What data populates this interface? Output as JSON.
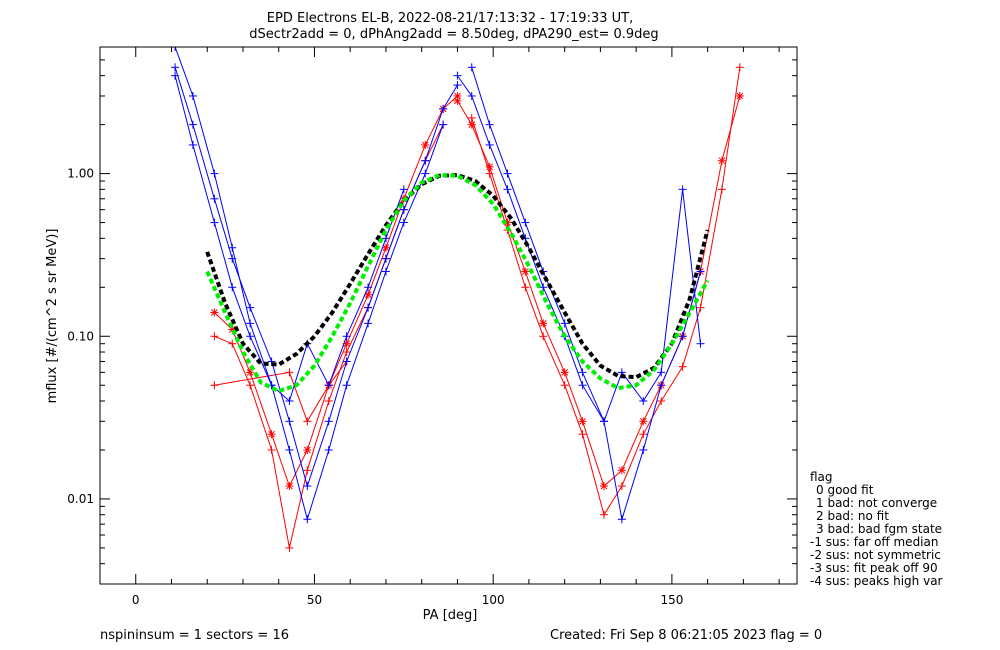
{
  "chart_data": {
    "type": "line",
    "title": "EPD Electrons EL-B, 2022-08-21/17:13:32 - 17:19:33 UT,",
    "subtitle": "dSectr2add = 0, dPhAng2add = 8.50deg, dPA290_est=   0.9deg",
    "xlabel": "PA [deg]",
    "ylabel": "mflux [#/(cm^2 s sr MeV)]",
    "xlim": [
      -10,
      185
    ],
    "ylim": [
      0.003,
      6.0
    ],
    "yscale": "log",
    "x_ticks": [
      0,
      50,
      100,
      150
    ],
    "x_tick_labels": [
      "0",
      "50",
      "100",
      "150"
    ],
    "y_ticks": [
      0.01,
      0.1,
      1.0
    ],
    "y_tick_labels": [
      "0.01",
      "0.10",
      "1.00"
    ],
    "grid": false,
    "series": [
      {
        "color": "#ff0000",
        "marker": "*",
        "x": [
          22,
          27,
          32,
          38,
          43,
          48,
          54,
          59,
          65,
          70,
          75,
          81,
          86,
          90
        ],
        "y": [
          0.14,
          0.11,
          0.06,
          0.025,
          0.012,
          0.02,
          0.05,
          0.09,
          0.18,
          0.35,
          0.7,
          1.5,
          2.5,
          3.0
        ]
      },
      {
        "color": "#ff0000",
        "marker": "*",
        "x": [
          90,
          94,
          99,
          104,
          109,
          114,
          120,
          125,
          131,
          136,
          142,
          147,
          153,
          158,
          164,
          169
        ],
        "y": [
          2.8,
          2.0,
          1.1,
          0.5,
          0.25,
          0.12,
          0.06,
          0.03,
          0.012,
          0.015,
          0.03,
          0.05,
          0.1,
          0.25,
          1.2,
          3.0
        ]
      },
      {
        "color": "#ff0000",
        "marker": "+",
        "x": [
          22,
          27,
          32,
          38,
          43,
          48,
          54,
          59,
          65,
          70,
          75,
          81,
          86
        ],
        "y": [
          0.1,
          0.09,
          0.05,
          0.02,
          0.005,
          0.015,
          0.04,
          0.08,
          0.15,
          0.3,
          0.6,
          1.2,
          2.0
        ]
      },
      {
        "color": "#ff0000",
        "marker": "+",
        "x": [
          94,
          99,
          104,
          109,
          114,
          120,
          125,
          131,
          136,
          142,
          147,
          153,
          158,
          164,
          169
        ],
        "y": [
          2.2,
          1.0,
          0.45,
          0.2,
          0.1,
          0.05,
          0.025,
          0.008,
          0.012,
          0.025,
          0.04,
          0.065,
          0.15,
          0.8,
          4.5
        ]
      },
      {
        "color": "#ff0000",
        "marker": "+",
        "x": [
          22,
          43,
          48,
          54,
          59
        ],
        "y": [
          0.05,
          0.06,
          0.03,
          0.05,
          0.07
        ]
      },
      {
        "color": "#0000ff",
        "marker": "+",
        "x": [
          11,
          16,
          22,
          27,
          32,
          38,
          43,
          48,
          54,
          59,
          65,
          70,
          75,
          81,
          86,
          90
        ],
        "y": [
          4.5,
          2.0,
          0.7,
          0.3,
          0.15,
          0.07,
          0.03,
          0.012,
          0.03,
          0.07,
          0.15,
          0.3,
          0.6,
          1.2,
          2.5,
          3.5
        ]
      },
      {
        "color": "#0000ff",
        "marker": "+",
        "x": [
          90,
          94,
          99,
          104,
          109,
          114,
          120,
          125,
          131,
          136,
          142,
          147,
          153,
          158
        ],
        "y": [
          4.0,
          3.0,
          1.5,
          0.8,
          0.4,
          0.2,
          0.1,
          0.05,
          0.03,
          0.0075,
          0.02,
          0.05,
          0.1,
          0.25
        ]
      },
      {
        "color": "#0000ff",
        "marker": "+",
        "x": [
          11,
          16,
          22,
          27,
          32,
          38,
          43,
          48,
          54,
          59,
          65,
          70,
          75,
          81,
          86
        ],
        "y": [
          6.0,
          3.0,
          1.0,
          0.35,
          0.12,
          0.05,
          0.02,
          0.0075,
          0.02,
          0.05,
          0.12,
          0.25,
          0.5,
          1.0,
          2.0
        ]
      },
      {
        "color": "#0000ff",
        "marker": "+",
        "x": [
          94,
          99,
          104,
          109,
          114,
          120,
          125,
          131,
          136,
          142,
          147,
          153,
          158
        ],
        "y": [
          4.5,
          2.0,
          1.0,
          0.5,
          0.25,
          0.12,
          0.06,
          0.03,
          0.06,
          0.04,
          0.06,
          0.8,
          0.09
        ]
      },
      {
        "color": "#0000ff",
        "marker": "+",
        "x": [
          11,
          16,
          22,
          27,
          32,
          38,
          43,
          48,
          54,
          59,
          65,
          70,
          75
        ],
        "y": [
          4.0,
          1.5,
          0.5,
          0.2,
          0.1,
          0.05,
          0.04,
          0.09,
          0.05,
          0.1,
          0.2,
          0.4,
          0.8
        ]
      }
    ],
    "fits": [
      {
        "color": "#000000",
        "style": "dashed",
        "x": [
          20,
          25,
          30,
          35,
          40,
          45,
          50,
          55,
          60,
          65,
          70,
          75,
          80,
          85,
          90,
          95,
          100,
          105,
          110,
          115,
          120,
          125,
          130,
          135,
          140,
          145,
          150,
          155,
          160
        ],
        "y": [
          0.33,
          0.16,
          0.09,
          0.068,
          0.067,
          0.078,
          0.1,
          0.14,
          0.21,
          0.32,
          0.48,
          0.68,
          0.86,
          0.97,
          0.98,
          0.9,
          0.73,
          0.53,
          0.35,
          0.22,
          0.14,
          0.09,
          0.066,
          0.057,
          0.056,
          0.064,
          0.09,
          0.17,
          0.45
        ]
      },
      {
        "color": "#00ee00",
        "style": "dashed",
        "x": [
          20,
          25,
          30,
          35,
          40,
          45,
          50,
          55,
          60,
          65,
          70,
          75,
          80,
          85,
          90,
          95,
          100,
          105,
          110,
          115,
          120,
          125,
          130,
          135,
          140,
          145,
          150,
          155,
          160
        ],
        "y": [
          0.25,
          0.14,
          0.08,
          0.052,
          0.046,
          0.05,
          0.066,
          0.1,
          0.16,
          0.27,
          0.45,
          0.68,
          0.88,
          0.98,
          0.97,
          0.85,
          0.65,
          0.43,
          0.27,
          0.16,
          0.1,
          0.07,
          0.055,
          0.048,
          0.05,
          0.062,
          0.09,
          0.14,
          0.22
        ]
      }
    ],
    "legend": {
      "title": "flag",
      "entries": [
        "0 good fit",
        "1 bad: not converge",
        "2 bad: no fit",
        "3 bad: bad fgm state",
        "-1 sus: far off median",
        "-2 sus: not symmetric",
        "-3 sus: fit peak off 90",
        "-4 sus: peaks high var"
      ],
      "placement": "right"
    }
  },
  "footer": {
    "left": "nspininsum =  1  sectors = 16",
    "right": "Created: Fri Sep  8 06:21:05 2023   flag = 0"
  }
}
